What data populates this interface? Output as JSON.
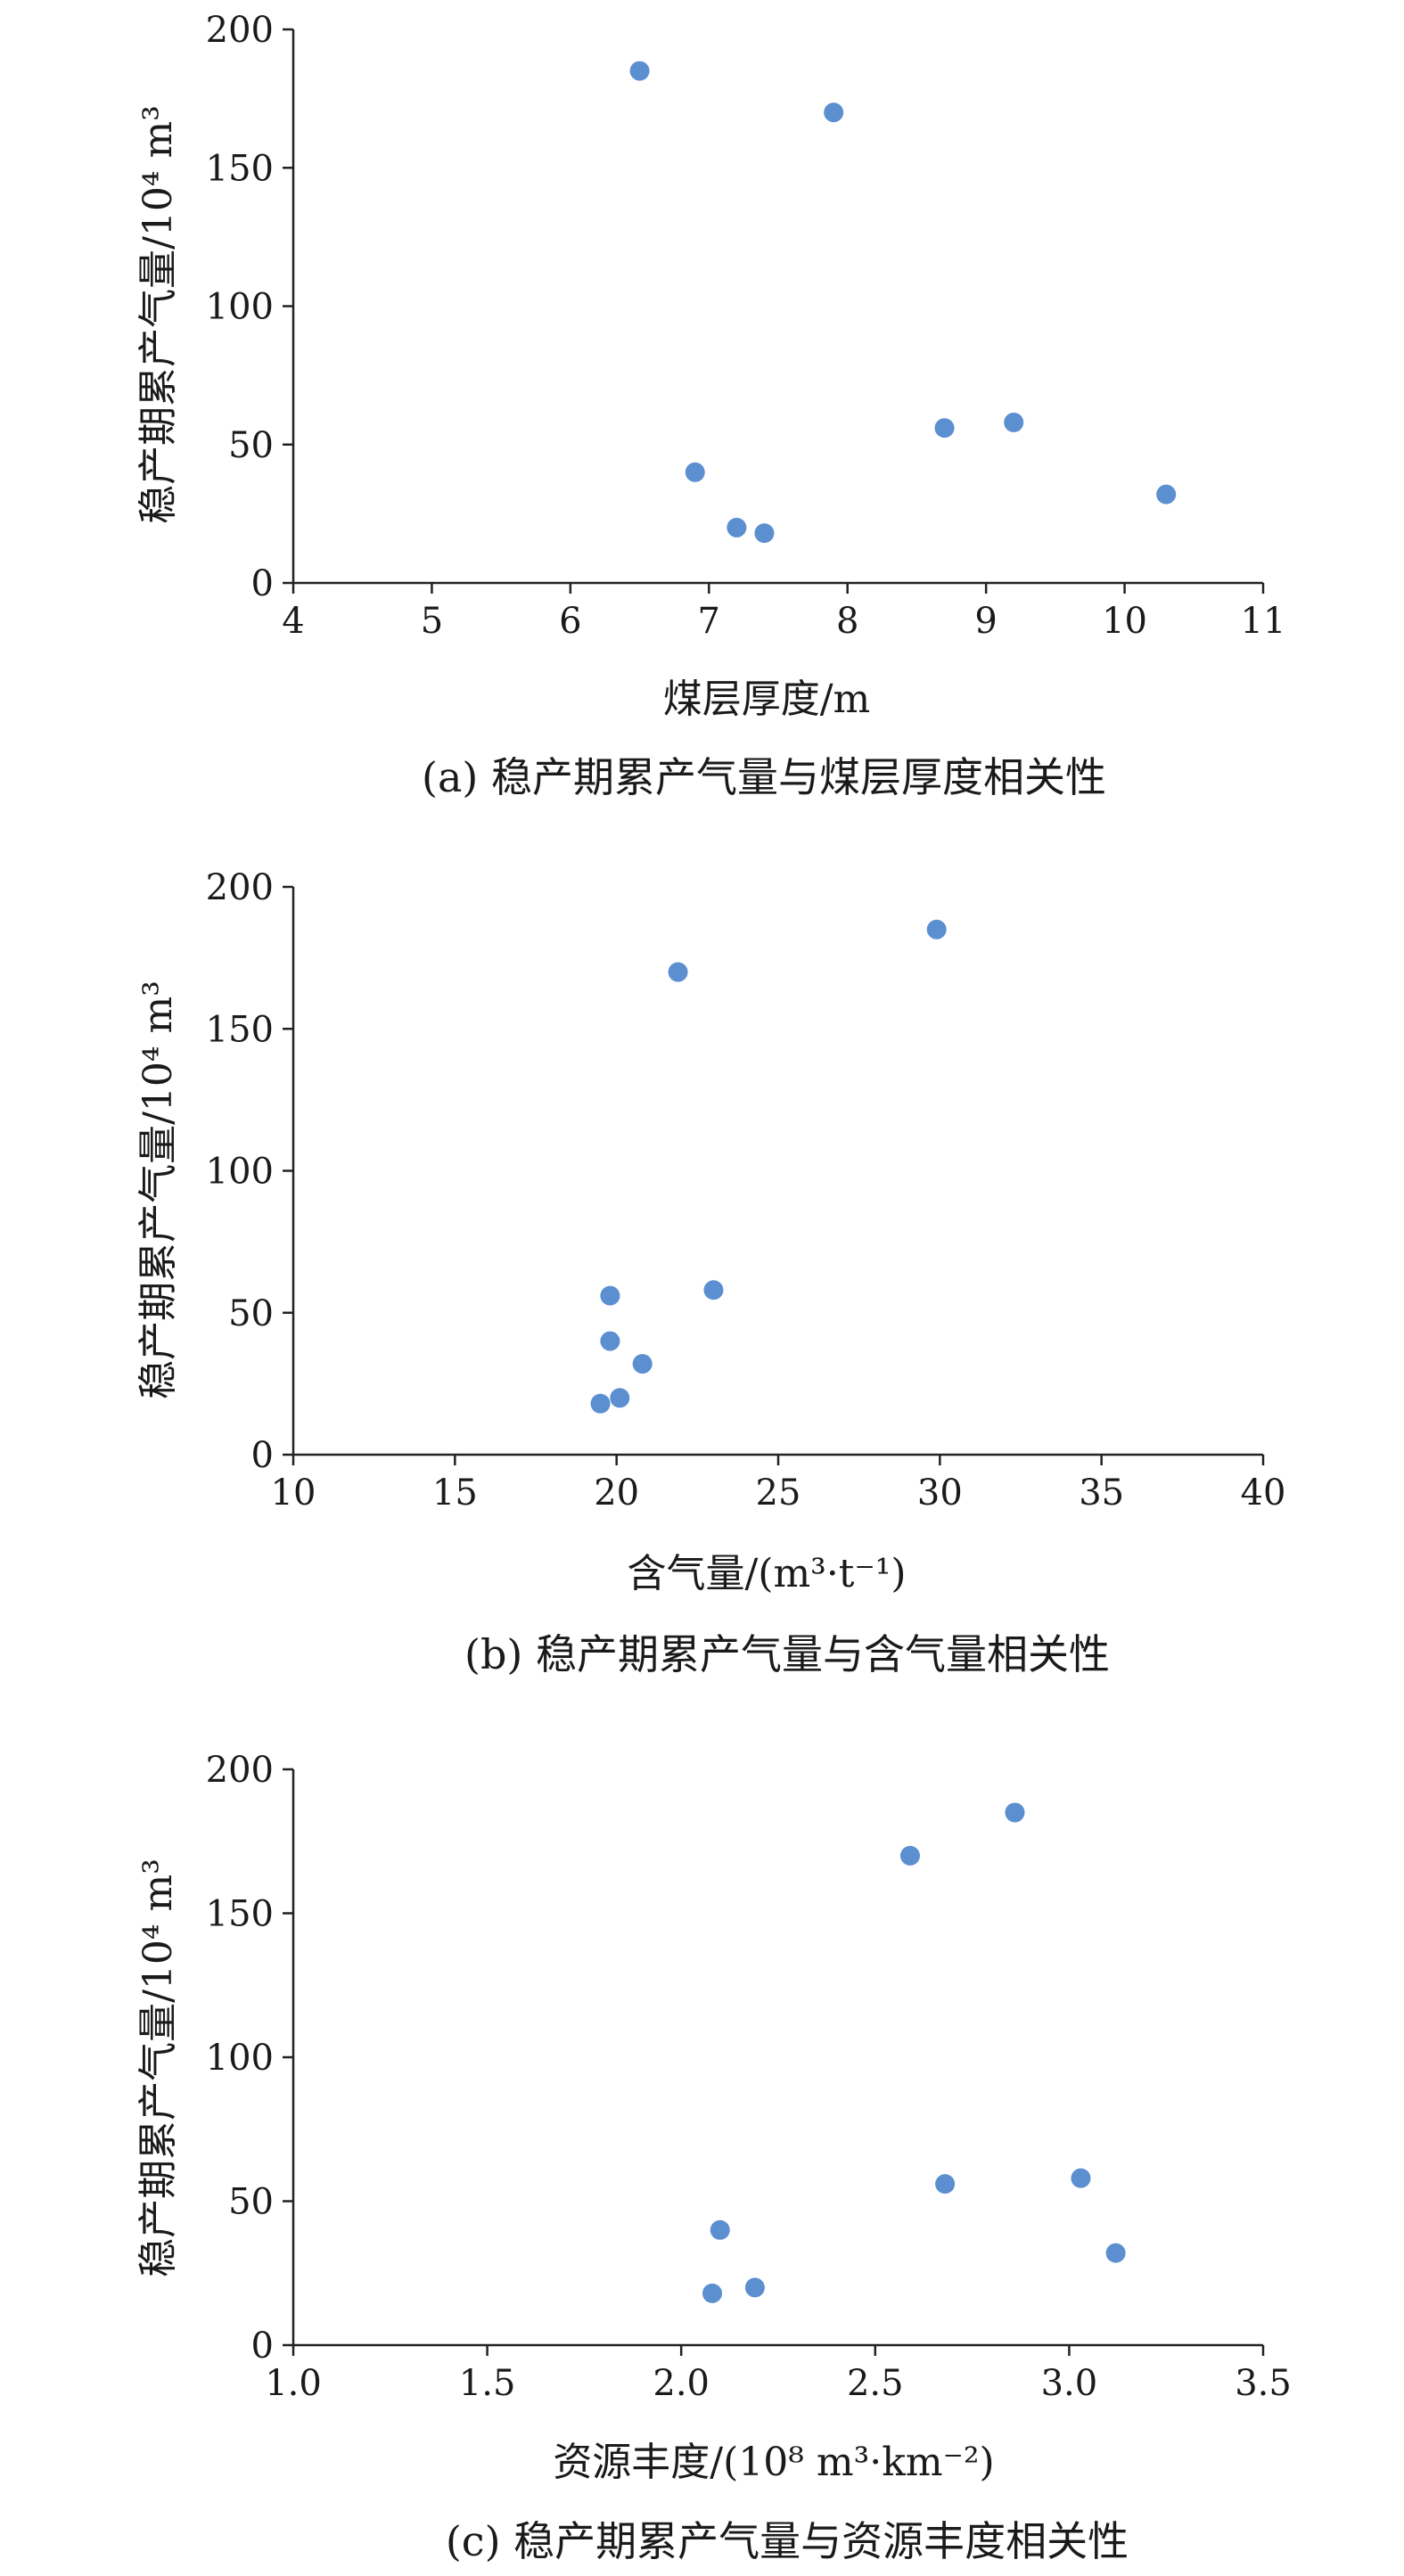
{
  "colors": {
    "marker": "#5b8fd0",
    "axis": "#222222",
    "text": "#1a1a1a"
  },
  "chart_data": [
    {
      "type": "scatter",
      "caption": "(a) 稳产期累产气量与煤层厚度相关性",
      "xlabel": "煤层厚度/m",
      "ylabel": "稳产期累产气量/10⁴ m³",
      "xlim": [
        4,
        11
      ],
      "ylim": [
        0,
        200
      ],
      "xticks": [
        4,
        5,
        6,
        7,
        8,
        9,
        10,
        11
      ],
      "yticks": [
        0,
        50,
        100,
        150,
        200
      ],
      "x_tick_labels": [
        "4",
        "5",
        "6",
        "7",
        "8",
        "9",
        "10",
        "11"
      ],
      "y_tick_labels": [
        "0",
        "50",
        "100",
        "150",
        "200"
      ],
      "points": [
        {
          "x": 6.5,
          "y": 185
        },
        {
          "x": 7.9,
          "y": 170
        },
        {
          "x": 8.7,
          "y": 56
        },
        {
          "x": 9.2,
          "y": 58
        },
        {
          "x": 6.9,
          "y": 40
        },
        {
          "x": 10.3,
          "y": 32
        },
        {
          "x": 7.2,
          "y": 20
        },
        {
          "x": 7.4,
          "y": 18
        }
      ]
    },
    {
      "type": "scatter",
      "caption": "(b) 稳产期累产气量与含气量相关性",
      "xlabel": "含气量/(m³·t⁻¹)",
      "ylabel": "稳产期累产气量/10⁴ m³",
      "xlim": [
        10,
        40
      ],
      "ylim": [
        0,
        200
      ],
      "xticks": [
        10,
        15,
        20,
        25,
        30,
        35,
        40
      ],
      "yticks": [
        0,
        50,
        100,
        150,
        200
      ],
      "x_tick_labels": [
        "10",
        "15",
        "20",
        "25",
        "30",
        "35",
        "40"
      ],
      "y_tick_labels": [
        "0",
        "50",
        "100",
        "150",
        "200"
      ],
      "points": [
        {
          "x": 29.9,
          "y": 185
        },
        {
          "x": 21.9,
          "y": 170
        },
        {
          "x": 23.0,
          "y": 58
        },
        {
          "x": 19.8,
          "y": 56
        },
        {
          "x": 19.8,
          "y": 40
        },
        {
          "x": 20.8,
          "y": 32
        },
        {
          "x": 20.1,
          "y": 20
        },
        {
          "x": 19.5,
          "y": 18
        }
      ]
    },
    {
      "type": "scatter",
      "caption": "(c) 稳产期累产气量与资源丰度相关性",
      "xlabel": "资源丰度/(10⁸ m³·km⁻²)",
      "ylabel": "稳产期累产气量/10⁴ m³",
      "xlim": [
        1.0,
        3.5
      ],
      "ylim": [
        0,
        200
      ],
      "xticks": [
        1.0,
        1.5,
        2.0,
        2.5,
        3.0,
        3.5
      ],
      "yticks": [
        0,
        50,
        100,
        150,
        200
      ],
      "x_tick_labels": [
        "1.0",
        "1.5",
        "2.0",
        "2.5",
        "3.0",
        "3.5"
      ],
      "y_tick_labels": [
        "0",
        "50",
        "100",
        "150",
        "200"
      ],
      "points": [
        {
          "x": 2.86,
          "y": 185
        },
        {
          "x": 2.59,
          "y": 170
        },
        {
          "x": 3.03,
          "y": 58
        },
        {
          "x": 2.68,
          "y": 56
        },
        {
          "x": 2.1,
          "y": 40
        },
        {
          "x": 3.12,
          "y": 32
        },
        {
          "x": 2.19,
          "y": 20
        },
        {
          "x": 2.08,
          "y": 18
        }
      ]
    }
  ]
}
